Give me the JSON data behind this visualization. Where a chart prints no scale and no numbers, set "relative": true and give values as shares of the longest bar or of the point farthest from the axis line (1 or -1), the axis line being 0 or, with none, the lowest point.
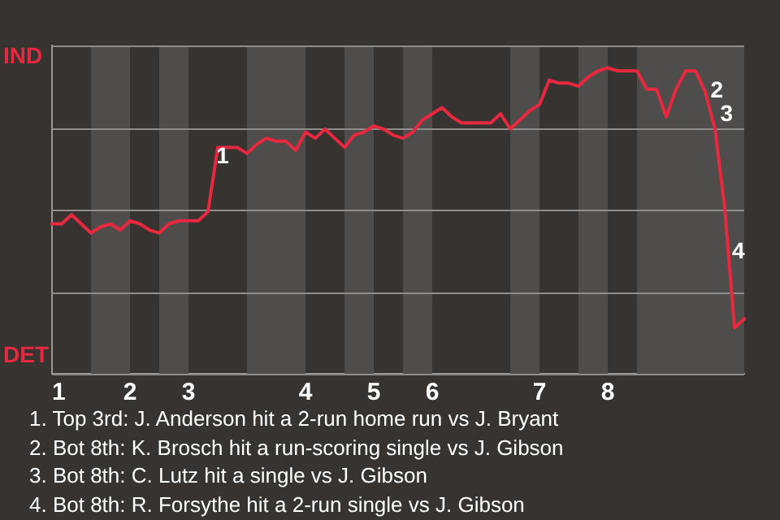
{
  "chart_data": {
    "type": "line",
    "relative": true,
    "categories": [
      "1",
      null,
      null,
      null,
      null,
      null,
      null,
      null,
      "2",
      null,
      null,
      null,
      null,
      null,
      "3",
      null,
      null,
      null,
      null,
      null,
      null,
      null,
      null,
      null,
      null,
      null,
      "4",
      null,
      null,
      null,
      null,
      null,
      null,
      "5",
      null,
      null,
      null,
      null,
      null,
      "6",
      null,
      null,
      null,
      null,
      null,
      null,
      null,
      null,
      null,
      null,
      "7",
      null,
      null,
      null,
      null,
      null,
      null,
      "8",
      null,
      null,
      null,
      null,
      null,
      null,
      null,
      null,
      null,
      null,
      null,
      null,
      null,
      null
    ],
    "series": [
      {
        "color": "#e8283f",
        "values": [
          0.49,
          0.49,
          0.52,
          0.49,
          0.46,
          0.48,
          0.49,
          0.47,
          0.5,
          0.49,
          0.47,
          0.46,
          0.49,
          0.5,
          0.5,
          0.5,
          0.53,
          0.74,
          0.74,
          0.74,
          0.72,
          0.75,
          0.77,
          0.76,
          0.76,
          0.73,
          0.79,
          0.77,
          0.8,
          0.77,
          0.74,
          0.78,
          0.79,
          0.81,
          0.8,
          0.78,
          0.77,
          0.79,
          0.83,
          0.85,
          0.87,
          0.84,
          0.82,
          0.82,
          0.82,
          0.82,
          0.85,
          0.8,
          0.83,
          0.86,
          0.88,
          0.96,
          0.95,
          0.95,
          0.94,
          0.97,
          0.99,
          1,
          0.99,
          0.99,
          0.99,
          0.93,
          0.93,
          0.84,
          0.93,
          0.99,
          0.99,
          0.92,
          0.8,
          0.54,
          0.15,
          0.18
        ]
      }
    ],
    "grid": "y",
    "legend": false,
    "marker": "none",
    "line_style": "solid",
    "annotations": [
      "IND",
      "DET",
      "1",
      "2",
      "3",
      "4",
      "1. Top 3rd: J. Anderson hit a 2-run home run vs J. Bryant",
      "2. Bot 8th: K. Brosch hit a run-scoring single vs J. Gibson",
      "3. Bot 8th: C. Lutz hit a single vs J. Gibson",
      "4. Bot 8th: R. Forsythe hit a 2-run single vs J. Gibson"
    ]
  }
}
